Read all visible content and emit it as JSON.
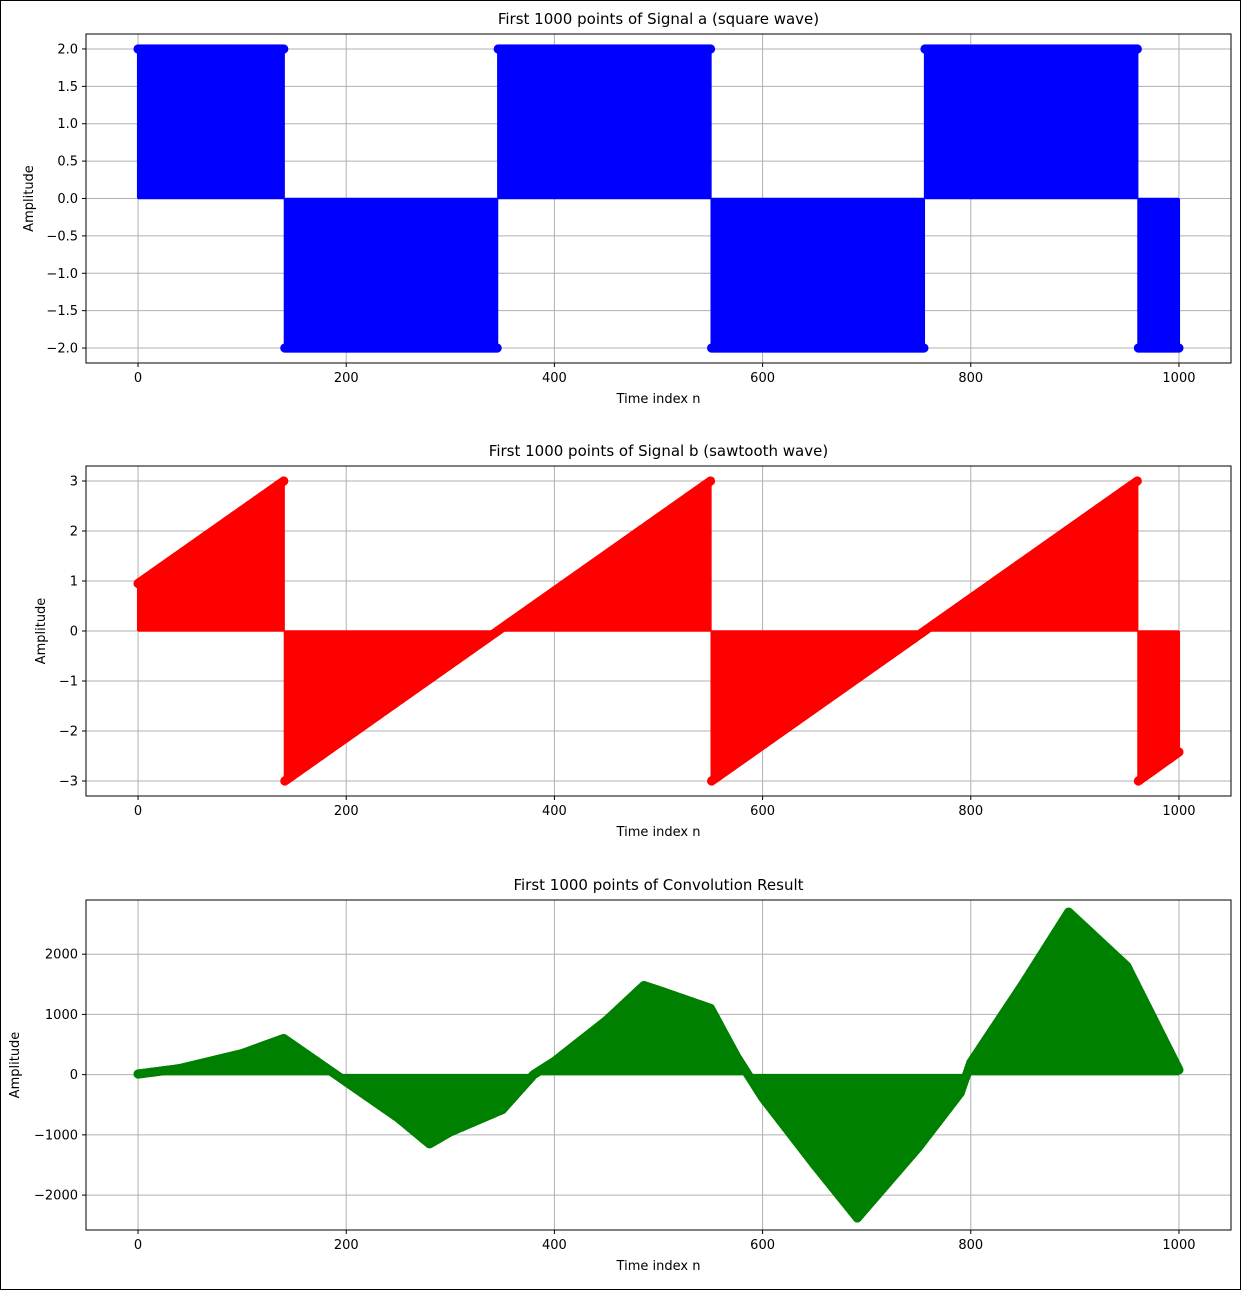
{
  "chart_data": [
    {
      "type": "line",
      "title": "First 1000 points of Signal a (square wave)",
      "xlabel": "Time index n",
      "ylabel": "Amplitude",
      "xlim": [
        -50,
        1050
      ],
      "ylim": [
        -2.2,
        2.2
      ],
      "xticks": [
        0,
        200,
        400,
        600,
        800,
        1000
      ],
      "xtick_labels": [
        "0",
        "200",
        "400",
        "600",
        "800",
        "1000"
      ],
      "yticks": [
        -2.0,
        -1.5,
        -1.0,
        -0.5,
        0.0,
        0.5,
        1.0,
        1.5,
        2.0
      ],
      "ytick_labels": [
        "−2.0",
        "−1.5",
        "−1.0",
        "−0.5",
        "0.0",
        "0.5",
        "1.0",
        "1.5",
        "2.0"
      ],
      "grid": true,
      "color": "#0000ff",
      "series": [
        {
          "style": "stem",
          "segments": [
            {
              "x": [
                0,
                140
              ],
              "y": [
                2,
                2
              ]
            },
            {
              "x": [
                141,
                345
              ],
              "y": [
                -2,
                -2
              ]
            },
            {
              "x": [
                346,
                550
              ],
              "y": [
                2,
                2
              ]
            },
            {
              "x": [
                551,
                755
              ],
              "y": [
                -2,
                -2
              ]
            },
            {
              "x": [
                756,
                960
              ],
              "y": [
                2,
                2
              ]
            },
            {
              "x": [
                961,
                1000
              ],
              "y": [
                -2,
                -2
              ]
            }
          ]
        }
      ]
    },
    {
      "type": "line",
      "title": "First 1000 points of Signal b (sawtooth wave)",
      "xlabel": "Time index n",
      "ylabel": "Amplitude",
      "xlim": [
        -50,
        1050
      ],
      "ylim": [
        -3.3,
        3.3
      ],
      "xticks": [
        0,
        200,
        400,
        600,
        800,
        1000
      ],
      "xtick_labels": [
        "0",
        "200",
        "400",
        "600",
        "800",
        "1000"
      ],
      "yticks": [
        -3,
        -2,
        -1,
        0,
        1,
        2,
        3
      ],
      "ytick_labels": [
        "−3",
        "−2",
        "−1",
        "0",
        "1",
        "2",
        "3"
      ],
      "grid": true,
      "color": "#ff0000",
      "series": [
        {
          "style": "stem",
          "segments": [
            {
              "x": [
                0,
                140
              ],
              "y": [
                0.95,
                3.0
              ]
            },
            {
              "x": [
                141,
                550
              ],
              "y": [
                -3.0,
                3.0
              ]
            },
            {
              "x": [
                551,
                960
              ],
              "y": [
                -3.0,
                3.0
              ]
            },
            {
              "x": [
                961,
                1000
              ],
              "y": [
                -3.0,
                -2.42
              ]
            }
          ]
        }
      ]
    },
    {
      "type": "line",
      "title": "First 1000 points of Convolution Result",
      "xlabel": "Time index n",
      "ylabel": "Amplitude",
      "xlim": [
        -50,
        1050
      ],
      "ylim": [
        -2580,
        2900
      ],
      "xticks": [
        0,
        200,
        400,
        600,
        800,
        1000
      ],
      "xtick_labels": [
        "0",
        "200",
        "400",
        "600",
        "800",
        "1000"
      ],
      "yticks": [
        -2000,
        -1000,
        0,
        1000,
        2000
      ],
      "ytick_labels": [
        "−2000",
        "−1000",
        "0",
        "1000",
        "2000"
      ],
      "grid": true,
      "color": "#008000",
      "series": [
        {
          "style": "stem",
          "points": {
            "x": [
              0,
              40,
              100,
              140,
              180,
              200,
              250,
              280,
              300,
              350,
              380,
              400,
              450,
              486,
              500,
              550,
              575,
              600,
              650,
              691,
              700,
              750,
              790,
              800,
              850,
              894,
              950,
              1000
            ],
            "y": [
              10,
              100,
              350,
              600,
              120,
              -120,
              -720,
              -1150,
              -950,
              -580,
              0,
              220,
              900,
              1480,
              1400,
              1100,
              300,
              -380,
              -1500,
              -2380,
              -2200,
              -1200,
              -300,
              200,
              1500,
              2700,
              1800,
              80
            ]
          }
        }
      ]
    }
  ]
}
